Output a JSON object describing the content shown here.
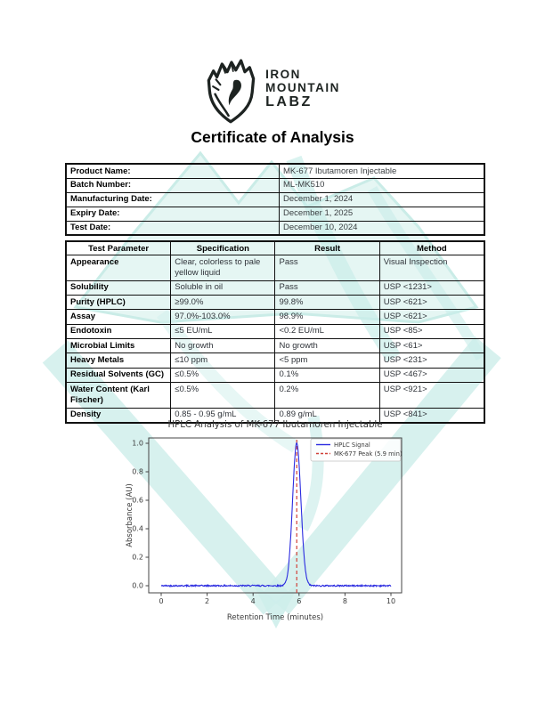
{
  "page": {
    "title": "Certificate of Analysis"
  },
  "logo": {
    "line1": "IRON",
    "line2": "MOUNTAIN",
    "line3": "LABZ"
  },
  "product_info": {
    "rows": [
      {
        "label": "Product Name:",
        "value": "MK-677 Ibutamoren Injectable"
      },
      {
        "label": "Batch Number:",
        "value": "ML-MK510"
      },
      {
        "label": "Manufacturing Date:",
        "value": "December 1, 2024"
      },
      {
        "label": "Expiry Date:",
        "value": "December 1, 2025"
      },
      {
        "label": "Test Date:",
        "value": "December 10, 2024"
      }
    ]
  },
  "results_table": {
    "headers": [
      "Test Parameter",
      "Specification",
      "Result",
      "Method"
    ],
    "rows": [
      [
        "Appearance",
        "Clear, colorless to pale yellow liquid",
        "Pass",
        "Visual Inspection"
      ],
      [
        "Solubility",
        "Soluble in oil",
        "Pass",
        "USP <1231>"
      ],
      [
        "Purity (HPLC)",
        "≥99.0%",
        "99.8%",
        "USP <621>"
      ],
      [
        "Assay",
        "97.0%-103.0%",
        "98.9%",
        "USP <621>"
      ],
      [
        "Endotoxin",
        "≤5 EU/mL",
        "<0.2 EU/mL",
        "USP <85>"
      ],
      [
        "Microbial Limits",
        "No growth",
        "No growth",
        "USP <61>"
      ],
      [
        "Heavy Metals",
        "≤10 ppm",
        "<5 ppm",
        "USP <231>"
      ],
      [
        "Residual Solvents (GC)",
        "≤0.5%",
        "0.1%",
        "USP <467>"
      ],
      [
        "Water Content (Karl Fischer)",
        "≤0.5%",
        "0.2%",
        "USP <921>"
      ],
      [
        "Density",
        "0.85 - 0.95 g/mL",
        "0.89 g/mL",
        "USP <841>"
      ]
    ]
  },
  "chart_data": {
    "type": "line",
    "title": "HPLC Analysis of MK-677 Ibutamoren Injectable",
    "xlabel": "Retention Time (minutes)",
    "ylabel": "Absorbance (AU)",
    "xlim": [
      0,
      10
    ],
    "ylim": [
      -0.05,
      1.05
    ],
    "x_ticks": [
      0,
      2,
      4,
      6,
      8,
      10
    ],
    "y_ticks": [
      0.0,
      0.2,
      0.4,
      0.6,
      0.8,
      1.0
    ],
    "grid": false,
    "legend_position": "upper right",
    "series": [
      {
        "name": "HPLC Signal",
        "color": "#2b2be0",
        "peak_center": 5.9,
        "peak_height": 1.0,
        "peak_sigma": 0.18,
        "baseline": 0.0,
        "noise_amplitude": 0.005
      }
    ],
    "marker": {
      "name": "MK-677 Peak (5.9 min)",
      "x": 5.9,
      "color": "#d04038",
      "style": "dashed"
    }
  },
  "colors": {
    "watermark_fill": "#c7ebe7",
    "watermark_stroke": "#8ed6cd",
    "watermark_band": "#a5e0da",
    "logo_ink": "#1d2321",
    "signal_blue": "#2b2be0",
    "marker_red": "#d04038",
    "chart_text": "#3a3a3a"
  }
}
